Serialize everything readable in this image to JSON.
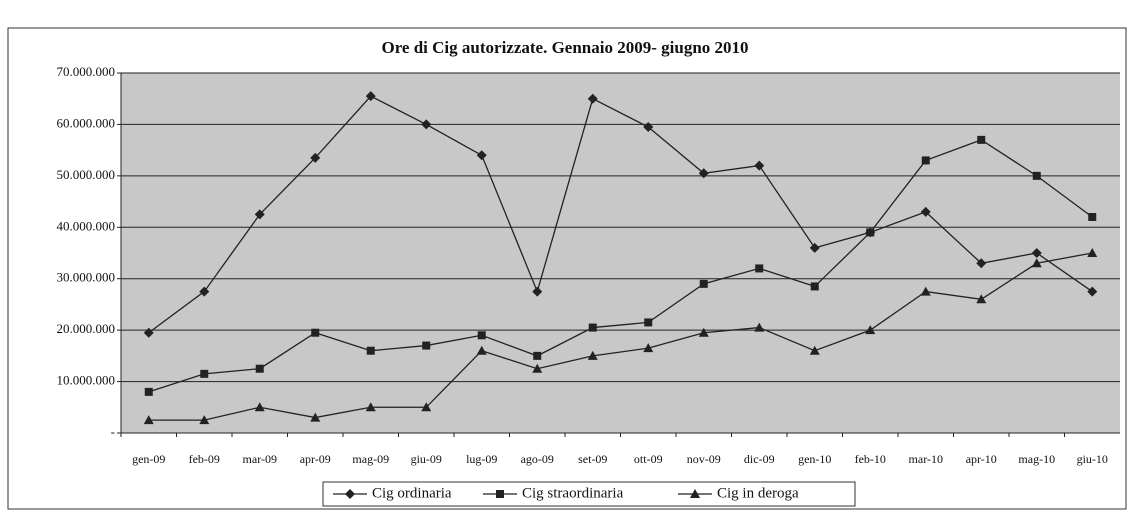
{
  "chart_data": {
    "type": "line",
    "title": "Ore di Cig autorizzate. Gennaio 2009- giugno 2010",
    "categories": [
      "gen-09",
      "feb-09",
      "mar-09",
      "apr-09",
      "mag-09",
      "giu-09",
      "lug-09",
      "ago-09",
      "set-09",
      "ott-09",
      "nov-09",
      "dic-09",
      "gen-10",
      "feb-10",
      "mar-10",
      "apr-10",
      "mag-10",
      "giu-10"
    ],
    "series": [
      {
        "name": "Cig ordinaria",
        "color": "#222222",
        "marker": "diamond",
        "values": [
          19500000,
          27500000,
          42500000,
          53500000,
          65500000,
          60000000,
          54000000,
          27500000,
          65000000,
          59500000,
          50500000,
          52000000,
          36000000,
          39000000,
          43000000,
          33000000,
          35000000,
          27500000
        ]
      },
      {
        "name": "Cig straordinaria",
        "color": "#222222",
        "marker": "square",
        "values": [
          8000000,
          11500000,
          12500000,
          19500000,
          16000000,
          17000000,
          19000000,
          15000000,
          20500000,
          21500000,
          29000000,
          32000000,
          28500000,
          39000000,
          53000000,
          57000000,
          50000000,
          42000000
        ]
      },
      {
        "name": "Cig in deroga",
        "color": "#222222",
        "marker": "triangle",
        "values": [
          2500000,
          2500000,
          5000000,
          3000000,
          5000000,
          5000000,
          16000000,
          12500000,
          15000000,
          16500000,
          19500000,
          20500000,
          16000000,
          20000000,
          27500000,
          26000000,
          33000000,
          35000000
        ]
      }
    ],
    "ylim": [
      0,
      70000000
    ],
    "yticks": [
      {
        "value": 0,
        "label": "-"
      },
      {
        "value": 10000000,
        "label": "10.000.000"
      },
      {
        "value": 20000000,
        "label": "20.000.000"
      },
      {
        "value": 30000000,
        "label": "30.000.000"
      },
      {
        "value": 40000000,
        "label": "40.000.000"
      },
      {
        "value": 50000000,
        "label": "50.000.000"
      },
      {
        "value": 60000000,
        "label": "60.000.000"
      },
      {
        "value": 70000000,
        "label": "70.000.000"
      }
    ],
    "grid": true,
    "legend": "bottom",
    "plot_background": "#c8c8c8"
  }
}
